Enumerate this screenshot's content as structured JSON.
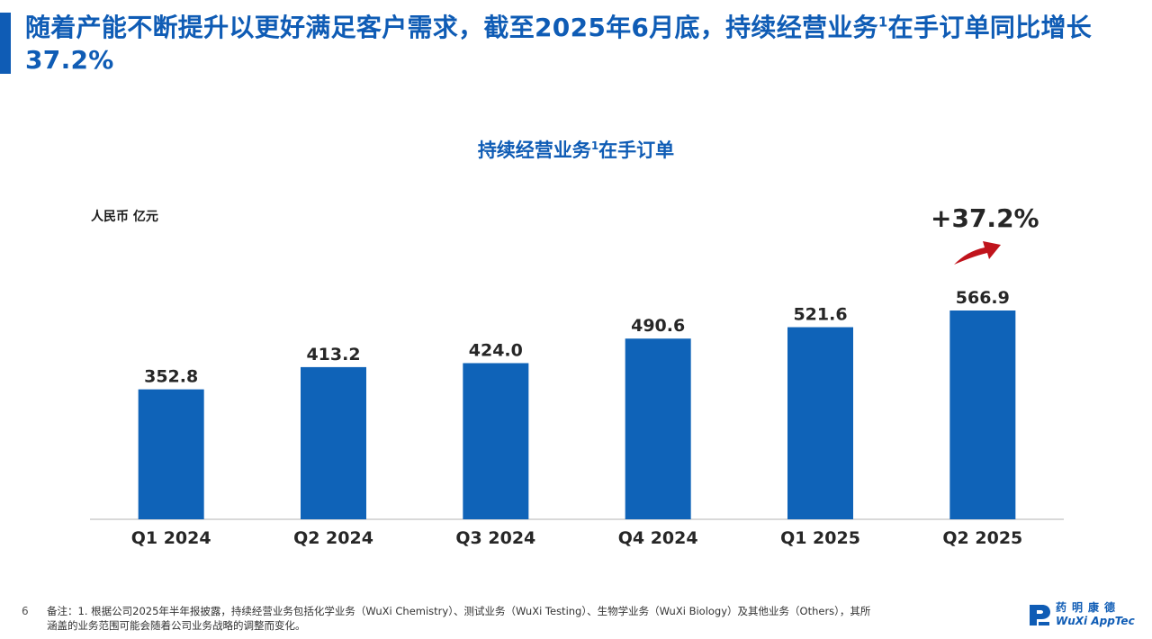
{
  "slide": {
    "title_main": "随着产能不断提升以更好满足客户需求，截至2025年6月底，持续经营业务",
    "title_sup": "1",
    "title_rest": "在手订单同比增长37.2%",
    "page_number": "6",
    "footnote_line1": "备注：1. 根据公司2025年半年报披露，持续经营业务包括化学业务（WuXi Chemistry）、测试业务（WuXi Testing）、生物学业务（WuXi Biology）及其他业务（Others），其所",
    "footnote_line2": "涵盖的业务范围可能会随着公司业务战略的调整而变化。",
    "logo_cn": "药明康德",
    "logo_en": "WuXi AppTec"
  },
  "chart_data": {
    "type": "bar",
    "title_main": "持续经营业务",
    "title_sup": "1",
    "title_rest": "在手订单",
    "ylabel": "人民币 亿元",
    "categories": [
      "Q1 2024",
      "Q2 2024",
      "Q3 2024",
      "Q4 2024",
      "Q1 2025",
      "Q2 2025"
    ],
    "values": [
      352.8,
      413.2,
      424.0,
      490.6,
      521.6,
      566.9
    ],
    "value_labels": [
      "352.8",
      "413.2",
      "424.0",
      "490.6",
      "521.6",
      "566.9"
    ],
    "ylim": [
      0,
      566.9
    ],
    "grid": false,
    "legend": "none",
    "annotation": "+37.2%",
    "colors": {
      "bar": "#0f63b8",
      "accent": "#0f5cb5",
      "arrow": "#c0141c",
      "axis": "#d9d9d9"
    }
  }
}
